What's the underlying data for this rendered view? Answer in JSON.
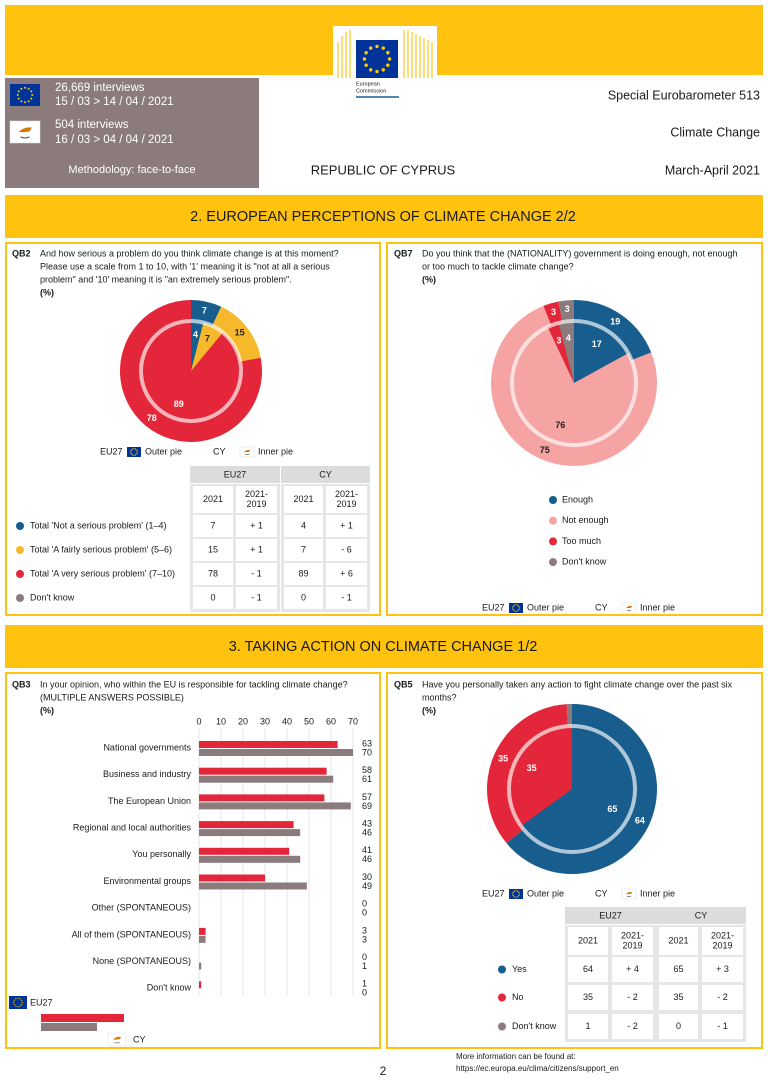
{
  "header": {
    "logo": [
      "European",
      "Commission"
    ],
    "eu_interviews": "26,669 interviews",
    "eu_dates": "15 / 03 > 14 / 04 / 2021",
    "cy_interviews": "504 interviews",
    "cy_dates": "16 / 03 > 04 / 04 / 2021",
    "methodology": "Methodology: face-to-face",
    "survey": "Special Eurobarometer 513",
    "topic": "Climate Change",
    "country": "REPUBLIC OF CYPRUS",
    "period": "March-April 2021"
  },
  "sections": [
    "2. EUROPEAN PERCEPTIONS OF CLIMATE CHANGE 2/2",
    "3. TAKING ACTION ON CLIMATE CHANGE 1/2"
  ],
  "chart_data": [
    {
      "type": "pie",
      "code": "QB2",
      "question": [
        "And how serious a problem do you think climate change is at this moment?",
        "Please use a scale from 1 to 10, with '1' meaning it is \"not at all a serious",
        "problem\" and '10' meaning it is \"an extremely serious problem\"."
      ],
      "unit": "(%)",
      "categories": [
        "Total 'Not a serious problem' (1–4)",
        "Total 'A fairly serious problem' (5–6)",
        "Total 'A very serious problem' (7–10)",
        "Don't know"
      ],
      "colors": [
        "#175e8f",
        "#f6b92b",
        "#e32639",
        "#8c7b7d"
      ],
      "series": [
        {
          "name": "EU27",
          "ring": "Outer pie",
          "values": [
            7,
            15,
            78,
            0
          ]
        },
        {
          "name": "CY",
          "ring": "Inner pie",
          "values": [
            4,
            7,
            89,
            0
          ]
        }
      ],
      "table": {
        "columns": [
          [
            "2021"
          ],
          [
            "2021-",
            "2019"
          ]
        ],
        "changes": [
          [
            "+ 1",
            "+ 1"
          ],
          [
            "+ 1",
            "- 6"
          ],
          [
            "- 1",
            "+ 6"
          ],
          [
            "- 1",
            "- 1"
          ]
        ]
      }
    },
    {
      "type": "pie",
      "code": "QB7",
      "question": [
        "Do you think that the (NATIONALITY) government is doing enough, not enough",
        "or too much to tackle climate change?"
      ],
      "unit": "(%)",
      "categories": [
        "Enough",
        "Not enough",
        "Too much",
        "Don't know"
      ],
      "colors": [
        "#175e8f",
        "#f5a3a3",
        "#e32639",
        "#8c7b7d"
      ],
      "series": [
        {
          "name": "EU27",
          "ring": "Outer pie",
          "values": [
            19,
            75,
            3,
            3
          ]
        },
        {
          "name": "CY",
          "ring": "Inner pie",
          "values": [
            17,
            76,
            3,
            4
          ]
        }
      ]
    },
    {
      "type": "bar",
      "orientation": "horizontal",
      "code": "QB3",
      "question": [
        "In your opinion, who within the EU is responsible for tackling climate change?",
        "(MULTIPLE ANSWERS POSSIBLE)"
      ],
      "unit": "(%)",
      "categories": [
        "National governments",
        "Business and industry",
        "The European Union",
        "Regional and local authorities",
        "You personally",
        "Environmental groups",
        "Other (SPONTANEOUS)",
        "All of them (SPONTANEOUS)",
        "None (SPONTANEOUS)",
        "Don't know"
      ],
      "series": [
        {
          "name": "EU27",
          "color": "#e32639",
          "values": [
            63,
            58,
            57,
            43,
            41,
            30,
            0,
            3,
            0,
            1
          ]
        },
        {
          "name": "CY",
          "color": "#8c7b7d",
          "values": [
            70,
            61,
            69,
            46,
            46,
            49,
            0,
            3,
            1,
            0
          ]
        }
      ],
      "xlim": [
        0,
        70
      ],
      "xticks": [
        0,
        10,
        20,
        30,
        40,
        50,
        60,
        70
      ],
      "grid": true
    },
    {
      "type": "pie",
      "code": "QB5",
      "question": [
        "Have you personally taken any action to fight climate change over the past six",
        "months?"
      ],
      "unit": "(%)",
      "categories": [
        "Yes",
        "No",
        "Don't know"
      ],
      "colors": [
        "#175e8f",
        "#e32639",
        "#8c7b7d"
      ],
      "series": [
        {
          "name": "EU27",
          "ring": "Outer pie",
          "values": [
            64,
            35,
            1
          ]
        },
        {
          "name": "CY",
          "ring": "Inner pie",
          "values": [
            65,
            35,
            0
          ]
        }
      ],
      "table": {
        "columns": [
          [
            "2021"
          ],
          [
            "2021-",
            "2019"
          ]
        ],
        "changes": [
          [
            "+ 4",
            "+ 3"
          ],
          [
            "- 2",
            "- 2"
          ],
          [
            "- 2",
            "- 1"
          ]
        ]
      }
    }
  ],
  "footer": {
    "page": "2",
    "info": [
      "More information can be found at:",
      "https://ec.europa.eu/clima/citizens/support_en"
    ]
  }
}
